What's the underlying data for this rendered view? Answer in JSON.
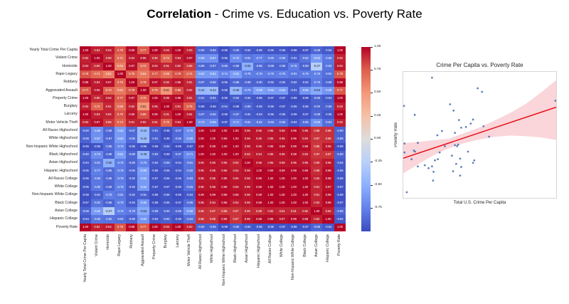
{
  "title": {
    "bold": "Correlation",
    "rest": " - Crime vs. Education vs. Poverty Rate"
  },
  "colors": {
    "heatmap_max_red": "#b40426",
    "heatmap_min_blue": "#3b4cc0",
    "scatter_point": "#4c72b0",
    "regression_line": "#e8000b",
    "confidence_band": "rgba(232,64,81,0.22)"
  },
  "chart_data": [
    {
      "type": "heatmap",
      "title": "Correlation - Crime vs. Education vs. Poverty Rate",
      "colormap": "coolwarm",
      "vmin": -1.0,
      "vmax": 1.0,
      "colorbar_ticks": [
        1.0,
        0.75,
        0.5,
        0.25,
        0.0,
        -0.25,
        -0.5,
        -0.75
      ],
      "colorbar_tick_labels": [
        "1.00",
        "0.75",
        "0.50",
        "0.25",
        "0.00",
        "-0.25",
        "-0.50",
        "-0.75"
      ],
      "categories": [
        "Yearly Total Crime Per Capita",
        "Violent Crime",
        "Homicide",
        "Rape Legacy",
        "Robbery",
        "Aggravated Assault",
        "Property Crime",
        "Burglary",
        "Larceny",
        "Motor Vehicle Theft",
        "All Races Highschool",
        "White Highschool",
        "Non-hispanic White Highschool",
        "Black Highschool",
        "Asian Highschool",
        "Hispanic Highschool",
        "All Races College",
        "White College",
        "Non-hispanic White College",
        "Black College",
        "Asian College",
        "Hispanic College",
        "Poverty Rate"
      ],
      "matrix": [
        [
          1.0,
          0.92,
          0.94,
          0.78,
          0.98,
          0.77,
          1.0,
          0.93,
          1.0,
          0.93,
          -0.9,
          -0.89,
          -0.99,
          -0.9,
          -0.94,
          -0.95,
          -0.96,
          -0.96,
          -0.98,
          -0.97,
          -0.88,
          -0.94,
          1.0
        ],
        [
          0.92,
          1.0,
          0.9,
          0.71,
          0.94,
          0.95,
          0.9,
          0.74,
          0.93,
          0.97,
          -0.68,
          -0.67,
          -0.96,
          -0.7,
          -0.81,
          -0.77,
          -0.8,
          -0.8,
          -0.91,
          -0.82,
          -0.62,
          -0.8,
          0.92
        ],
        [
          0.94,
          0.9,
          1.0,
          0.62,
          0.97,
          0.73,
          0.94,
          0.91,
          0.92,
          0.86,
          -0.88,
          -0.87,
          -0.86,
          -0.89,
          -0.5,
          -0.86,
          -0.88,
          -0.89,
          -0.78,
          -0.89,
          -0.27,
          -0.82,
          0.94
        ],
        [
          0.78,
          0.71,
          0.62,
          1.0,
          0.75,
          0.64,
          0.77,
          0.69,
          0.79,
          0.74,
          -0.62,
          -0.62,
          -0.74,
          -0.61,
          -0.78,
          -0.78,
          -0.78,
          -0.76,
          -0.81,
          -0.78,
          -0.76,
          -0.84,
          0.78
        ],
        [
          0.98,
          0.94,
          0.97,
          0.75,
          1.0,
          0.78,
          0.97,
          0.92,
          0.96,
          0.91,
          -0.87,
          -0.86,
          -0.95,
          -0.88,
          -0.89,
          -0.9,
          -0.92,
          -0.93,
          -0.92,
          -0.93,
          -0.79,
          -0.89,
          0.98
        ],
        [
          0.77,
          0.95,
          0.73,
          0.64,
          0.78,
          1.0,
          0.75,
          0.51,
          0.8,
          0.92,
          -0.44,
          -0.42,
          -0.96,
          -0.46,
          -0.75,
          -0.59,
          -0.62,
          -0.62,
          -0.91,
          -0.65,
          -0.53,
          -0.65,
          0.77
        ],
        [
          1.0,
          0.9,
          0.94,
          0.77,
          0.97,
          0.75,
          1.0,
          0.95,
          0.99,
          0.91,
          -0.91,
          -0.91,
          -0.99,
          -0.92,
          -0.94,
          -0.96,
          -0.97,
          -0.97,
          -0.99,
          -0.98,
          -0.89,
          -0.94,
          1.0
        ],
        [
          0.93,
          0.74,
          0.91,
          0.69,
          0.92,
          0.51,
          0.95,
          1.0,
          0.91,
          0.75,
          -0.98,
          -0.98,
          -0.94,
          -0.98,
          -0.89,
          -0.95,
          -0.96,
          -0.97,
          -0.96,
          -0.96,
          -0.9,
          -0.9,
          0.93
        ],
        [
          1.0,
          0.93,
          0.92,
          0.79,
          0.96,
          0.8,
          0.99,
          0.91,
          1.0,
          0.94,
          -0.87,
          -0.86,
          -0.99,
          -0.87,
          -0.94,
          -0.94,
          -0.96,
          -0.96,
          -0.99,
          -0.97,
          -0.88,
          -0.95,
          1.0
        ],
        [
          0.93,
          0.97,
          0.86,
          0.74,
          0.91,
          0.92,
          0.91,
          0.75,
          0.94,
          1.0,
          -0.7,
          -0.69,
          -0.97,
          -0.71,
          -0.81,
          -0.82,
          -0.83,
          -0.83,
          -0.94,
          -0.85,
          -0.66,
          -0.84,
          0.93
        ],
        [
          -0.9,
          -0.68,
          -0.88,
          -0.62,
          -0.87,
          -0.44,
          -0.91,
          -0.98,
          -0.87,
          -0.7,
          1.0,
          1.0,
          1.0,
          1.0,
          0.96,
          0.95,
          0.95,
          0.96,
          0.99,
          0.95,
          0.88,
          0.88,
          -0.9
        ],
        [
          -0.89,
          -0.67,
          -0.87,
          -0.62,
          -0.86,
          -0.42,
          -0.91,
          -0.98,
          -0.86,
          -0.69,
          1.0,
          1.0,
          0.99,
          1.0,
          0.96,
          0.95,
          0.95,
          0.96,
          0.99,
          0.94,
          0.87,
          0.88,
          -0.89
        ],
        [
          -0.99,
          -0.96,
          -0.86,
          -0.74,
          -0.95,
          -0.96,
          -0.99,
          -0.94,
          -0.99,
          -0.97,
          1.0,
          0.99,
          1.0,
          1.0,
          0.95,
          0.96,
          0.98,
          0.98,
          0.99,
          0.98,
          0.86,
          0.95,
          -0.99
        ],
        [
          -0.9,
          -0.7,
          -0.89,
          -0.61,
          -0.88,
          -0.46,
          -0.92,
          -0.98,
          -0.87,
          -0.71,
          1.0,
          1.0,
          1.0,
          1.0,
          0.92,
          0.94,
          0.95,
          0.96,
          0.98,
          0.94,
          0.87,
          0.87,
          -0.9
        ],
        [
          -0.94,
          -0.81,
          -0.5,
          -0.78,
          -0.89,
          -0.75,
          -0.94,
          -0.89,
          -0.94,
          -0.81,
          0.96,
          0.96,
          0.95,
          0.92,
          1.0,
          0.96,
          0.95,
          0.95,
          0.96,
          0.95,
          0.9,
          0.95,
          -0.94
        ],
        [
          -0.95,
          -0.77,
          -0.86,
          -0.78,
          -0.9,
          -0.59,
          -0.96,
          -0.95,
          -0.94,
          -0.82,
          0.95,
          0.95,
          0.96,
          0.94,
          0.96,
          1.0,
          0.99,
          0.99,
          0.99,
          0.99,
          0.89,
          0.98,
          -0.95
        ],
        [
          -0.96,
          -0.8,
          -0.88,
          -0.78,
          -0.92,
          -0.62,
          -0.97,
          -0.96,
          -0.96,
          -0.83,
          0.95,
          0.95,
          0.98,
          0.95,
          0.95,
          0.99,
          1.0,
          1.0,
          1.0,
          1.0,
          0.92,
          0.98,
          -0.96
        ],
        [
          -0.96,
          -0.8,
          -0.89,
          -0.76,
          -0.93,
          -0.62,
          -0.97,
          -0.97,
          -0.96,
          -0.83,
          0.96,
          0.96,
          0.98,
          0.96,
          0.95,
          0.99,
          1.0,
          1.0,
          1.0,
          1.0,
          0.91,
          0.97,
          -0.97
        ],
        [
          -0.98,
          -0.91,
          -0.78,
          -0.81,
          -0.92,
          -0.91,
          -0.99,
          -0.96,
          -0.99,
          -0.94,
          0.99,
          0.99,
          0.99,
          0.98,
          0.96,
          0.99,
          1.0,
          1.0,
          1.0,
          1.0,
          0.91,
          0.99,
          -0.98
        ],
        [
          -0.97,
          -0.82,
          -0.89,
          -0.78,
          -0.93,
          -0.65,
          -0.98,
          -0.96,
          -0.97,
          -0.85,
          0.95,
          0.94,
          0.98,
          0.94,
          0.95,
          0.99,
          1.0,
          1.0,
          1.0,
          1.0,
          0.92,
          0.98,
          -0.97
        ],
        [
          -0.88,
          -0.62,
          -0.27,
          -0.76,
          -0.79,
          -0.53,
          -0.89,
          -0.9,
          -0.88,
          -0.66,
          0.88,
          0.87,
          0.86,
          0.87,
          0.9,
          0.89,
          0.92,
          0.91,
          0.91,
          0.92,
          1.0,
          0.92,
          -0.88
        ],
        [
          -0.94,
          -0.8,
          -0.82,
          -0.84,
          -0.89,
          -0.65,
          -0.94,
          -0.9,
          -0.95,
          -0.84,
          0.88,
          0.88,
          0.95,
          0.87,
          0.95,
          0.98,
          0.98,
          0.97,
          0.99,
          0.98,
          0.92,
          1.0,
          -0.94
        ],
        [
          1.0,
          0.92,
          0.94,
          0.78,
          0.98,
          0.77,
          1.0,
          0.93,
          1.0,
          0.93,
          -0.9,
          -0.89,
          -0.99,
          -0.9,
          -0.94,
          -0.95,
          -0.96,
          -0.97,
          -0.98,
          -0.97,
          -0.88,
          -0.94,
          1.0
        ]
      ]
    },
    {
      "type": "scatter",
      "title": "Crime Per Capita vs. Poverty Rate",
      "xlabel": "Total U.S. Crime Per Capita",
      "ylabel": "Poverty Rate",
      "x_tick_labels": [],
      "y_tick_labels": [],
      "points_norm_xy": [
        [
          0.188,
          0.046
        ],
        [
          0.487,
          0.13
        ],
        [
          0.515,
          0.158
        ],
        [
          0.306,
          0.257
        ],
        [
          0.005,
          0.27
        ],
        [
          0.995,
          0.229
        ],
        [
          0.329,
          0.307
        ],
        [
          0.075,
          0.341
        ],
        [
          0.364,
          0.382
        ],
        [
          0.456,
          0.378
        ],
        [
          0.379,
          0.443
        ],
        [
          0.41,
          0.437
        ],
        [
          0.441,
          0.41
        ],
        [
          0.525,
          0.432
        ],
        [
          0.223,
          0.503
        ],
        [
          0.253,
          0.469
        ],
        [
          0.338,
          0.484
        ],
        [
          0.561,
          0.514
        ],
        [
          0.008,
          0.568
        ],
        [
          0.095,
          0.563
        ],
        [
          0.272,
          0.59
        ],
        [
          0.338,
          0.581
        ],
        [
          0.352,
          0.59
        ],
        [
          0.359,
          0.577
        ],
        [
          0.008,
          0.639
        ],
        [
          0.069,
          0.624
        ],
        [
          0.077,
          0.633
        ],
        [
          0.238,
          0.639
        ],
        [
          0.318,
          0.665
        ],
        [
          0.423,
          0.633
        ],
        [
          0.054,
          0.693
        ],
        [
          0.207,
          0.702
        ],
        [
          0.226,
          0.693
        ],
        [
          0.372,
          0.689
        ],
        [
          0.464,
          0.702
        ],
        [
          0.095,
          0.75
        ],
        [
          0.141,
          0.741
        ],
        [
          0.165,
          0.764
        ],
        [
          0.188,
          0.749
        ],
        [
          0.346,
          0.73
        ],
        [
          0.379,
          0.754
        ],
        [
          0.456,
          0.722
        ],
        [
          0.198,
          0.792
        ],
        [
          0.326,
          0.788
        ],
        [
          0.195,
          0.862
        ],
        [
          0.372,
          0.823
        ],
        [
          0.023,
          0.955
        ]
      ],
      "regression_line_norm": {
        "x": [
          0,
          100
        ],
        "y": [
          68.5,
          28.0
        ]
      },
      "ci_band_norm": {
        "x": [
          0,
          10,
          20,
          30,
          40,
          50,
          60,
          70,
          80,
          90,
          100
        ],
        "top_y": [
          56.5,
          55.5,
          54.2,
          53.0,
          48.5,
          44.0,
          38.5,
          32.5,
          25.5,
          16.5,
          6.5
        ],
        "bottom_y": [
          80.5,
          73.0,
          66.0,
          60.5,
          56.5,
          53.5,
          51.5,
          50.5,
          51.0,
          52.0,
          54.0
        ]
      }
    }
  ]
}
